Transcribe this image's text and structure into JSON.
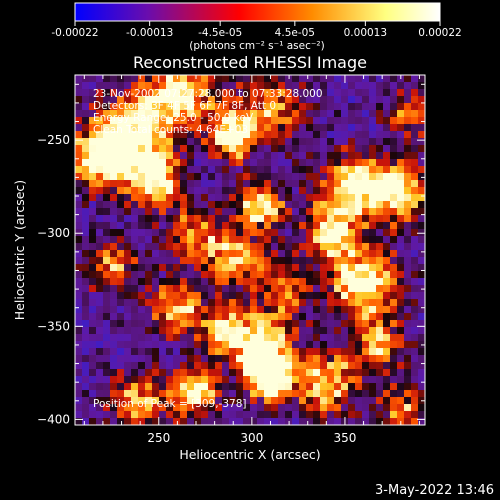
{
  "colorbar": {
    "tick_labels": [
      "-0.00022",
      "-0.00013",
      "-4.5e-05",
      "4.5e-05",
      "0.00013",
      "0.00022"
    ],
    "tick_values": [
      -0.00022,
      -0.00013,
      -4.5e-05,
      4.5e-05,
      0.00013,
      0.00022
    ],
    "units_label": "(photons cm⁻² s⁻¹ asec⁻²)",
    "range": [
      -0.00022,
      0.00022
    ],
    "colors": [
      "#0000ff",
      "#6a0dad",
      "#ff0000",
      "#ff8c00",
      "#ffff80",
      "#ffffff"
    ]
  },
  "chart_data": {
    "type": "heatmap",
    "title": "Reconstructed RHESSI Image",
    "xlabel": "Heliocentric X (arcsec)",
    "ylabel": "Heliocentric Y (arcsec)",
    "xlim": [
      205,
      393
    ],
    "ylim": [
      -403,
      -215
    ],
    "xticks": [
      250,
      300,
      350
    ],
    "yticks": [
      -250,
      -300,
      -350,
      -400
    ],
    "annotations": [
      "23-Nov-2002 07:27:28.000 to 07:33:28.000",
      "Detectors: 3F 4F 5F 6F 7F 8F, Att 0",
      "Energy Range: 25.0 - 50.0 keV",
      "Clean  Total counts: 4.64E+03"
    ],
    "peak_label": "Position of Peak = [309,-378]",
    "peak": [
      309,
      -378
    ],
    "sources": [
      {
        "x": 218,
        "y": -260,
        "s": 12,
        "a": 0.8
      },
      {
        "x": 235,
        "y": -245,
        "s": 14,
        "a": 0.9
      },
      {
        "x": 248,
        "y": -272,
        "s": 10,
        "a": 1.0
      },
      {
        "x": 262,
        "y": -225,
        "s": 14,
        "a": 0.8
      },
      {
        "x": 290,
        "y": -248,
        "s": 9,
        "a": 1.0
      },
      {
        "x": 312,
        "y": -232,
        "s": 14,
        "a": 0.6
      },
      {
        "x": 270,
        "y": -300,
        "s": 11,
        "a": 0.6
      },
      {
        "x": 305,
        "y": -285,
        "s": 9,
        "a": 0.9
      },
      {
        "x": 292,
        "y": -315,
        "s": 11,
        "a": 0.7
      },
      {
        "x": 352,
        "y": -275,
        "s": 12,
        "a": 0.9
      },
      {
        "x": 378,
        "y": -278,
        "s": 12,
        "a": 0.9
      },
      {
        "x": 342,
        "y": -300,
        "s": 10,
        "a": 0.8
      },
      {
        "x": 360,
        "y": -327,
        "s": 13,
        "a": 1.0
      },
      {
        "x": 318,
        "y": -330,
        "s": 10,
        "a": 0.6
      },
      {
        "x": 260,
        "y": -340,
        "s": 11,
        "a": 0.7
      },
      {
        "x": 225,
        "y": -318,
        "s": 10,
        "a": 0.6
      },
      {
        "x": 285,
        "y": -352,
        "s": 9,
        "a": 0.7
      },
      {
        "x": 305,
        "y": -360,
        "s": 12,
        "a": 0.9
      },
      {
        "x": 309,
        "y": -378,
        "s": 9,
        "a": 1.0
      },
      {
        "x": 340,
        "y": -380,
        "s": 12,
        "a": 0.8
      },
      {
        "x": 368,
        "y": -360,
        "s": 10,
        "a": 0.7
      },
      {
        "x": 240,
        "y": -390,
        "s": 12,
        "a": 0.7
      },
      {
        "x": 270,
        "y": -385,
        "s": 9,
        "a": 0.9
      },
      {
        "x": 380,
        "y": -395,
        "s": 10,
        "a": 0.6
      },
      {
        "x": 385,
        "y": -235,
        "s": 10,
        "a": 0.5
      }
    ]
  },
  "footer": {
    "date": "3-May-2022 13:46"
  }
}
